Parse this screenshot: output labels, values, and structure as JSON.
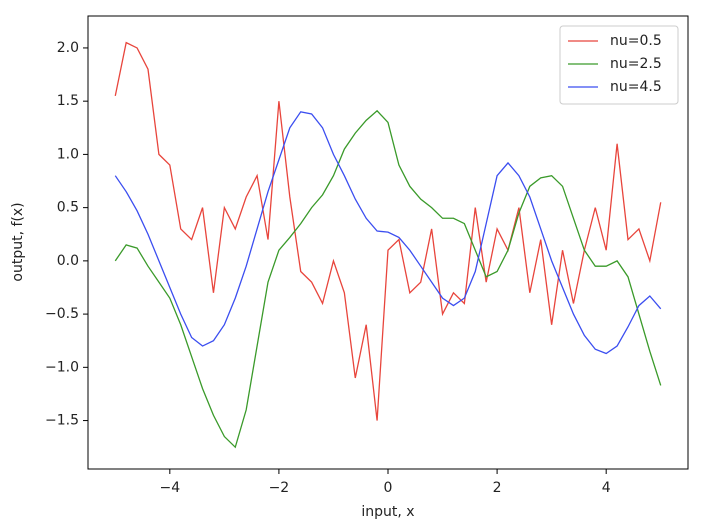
{
  "chart_data": {
    "type": "line",
    "xlabel": "input, x",
    "ylabel": "output, f(x)",
    "x": [
      -5,
      -4.8,
      -4.6,
      -4.4,
      -4.2,
      -4,
      -3.8,
      -3.6,
      -3.4,
      -3.2,
      -3,
      -2.8,
      -2.6,
      -2.4,
      -2.2,
      -2,
      -1.8,
      -1.6,
      -1.4,
      -1.2,
      -1,
      -0.8,
      -0.6,
      -0.4,
      -0.2,
      0,
      0.2,
      0.4,
      0.6,
      0.8,
      1,
      1.2,
      1.4,
      1.6,
      1.8,
      2,
      2.2,
      2.4,
      2.6,
      2.8,
      3,
      3.2,
      3.4,
      3.6,
      3.8,
      4,
      4.2,
      4.4,
      4.6,
      4.8,
      5
    ],
    "series": [
      {
        "name": "nu=0.5",
        "color": "#e8453c",
        "values": [
          1.55,
          2.05,
          2.0,
          1.8,
          1.0,
          0.9,
          0.3,
          0.2,
          0.5,
          -0.3,
          0.5,
          0.3,
          0.6,
          0.8,
          0.2,
          1.5,
          0.6,
          -0.1,
          -0.2,
          -0.4,
          0.0,
          -0.3,
          -1.1,
          -0.6,
          -1.5,
          0.1,
          0.2,
          -0.3,
          -0.2,
          0.3,
          -0.5,
          -0.3,
          -0.4,
          0.5,
          -0.2,
          0.3,
          0.1,
          0.5,
          -0.3,
          0.2,
          -0.6,
          0.1,
          -0.4,
          0.1,
          0.5,
          0.1,
          1.1,
          0.2,
          0.3,
          0.0,
          0.55
        ]
      },
      {
        "name": "nu=2.5",
        "color": "#3a9a2a",
        "values": [
          0,
          0.15,
          0.12,
          -0.05,
          -0.2,
          -0.35,
          -0.6,
          -0.9,
          -1.2,
          -1.45,
          -1.65,
          -1.75,
          -1.4,
          -0.8,
          -0.2,
          0.1,
          0.22,
          0.35,
          0.5,
          0.62,
          0.8,
          1.05,
          1.2,
          1.32,
          1.41,
          1.3,
          0.9,
          0.7,
          0.58,
          0.5,
          0.4,
          0.4,
          0.35,
          0.1,
          -0.15,
          -0.1,
          0.1,
          0.45,
          0.7,
          0.78,
          0.8,
          0.7,
          0.4,
          0.1,
          -0.05,
          -0.05,
          0.0,
          -0.15,
          -0.5,
          -0.85,
          -1.17
        ]
      },
      {
        "name": "nu=4.5",
        "color": "#3b4ef0",
        "values": [
          0.8,
          0.65,
          0.47,
          0.25,
          0.0,
          -0.25,
          -0.5,
          -0.72,
          -0.8,
          -0.75,
          -0.6,
          -0.35,
          -0.05,
          0.3,
          0.65,
          0.95,
          1.25,
          1.4,
          1.38,
          1.25,
          1.0,
          0.8,
          0.58,
          0.4,
          0.28,
          0.27,
          0.22,
          0.1,
          -0.05,
          -0.2,
          -0.35,
          -0.42,
          -0.35,
          -0.1,
          0.35,
          0.8,
          0.92,
          0.8,
          0.6,
          0.3,
          0.0,
          -0.25,
          -0.5,
          -0.7,
          -0.83,
          -0.87,
          -0.8,
          -0.62,
          -0.42,
          -0.33,
          -0.45
        ]
      }
    ],
    "xlim": [
      -5.5,
      5.5
    ],
    "ylim": [
      -1.955,
      2.3
    ],
    "xticks": [
      {
        "value": -4,
        "label": "−4"
      },
      {
        "value": -2,
        "label": "−2"
      },
      0,
      2,
      4
    ],
    "yticks": [
      {
        "value": -1.5,
        "label": "−1.5"
      },
      {
        "value": -1,
        "label": "−1.0"
      },
      {
        "value": -0.5,
        "label": "−0.5"
      },
      {
        "value": 0,
        "label": "0.0"
      },
      {
        "value": 0.5,
        "label": "0.5"
      },
      {
        "value": 1,
        "label": "1.0"
      },
      {
        "value": 1.5,
        "label": "1.5"
      },
      {
        "value": 2,
        "label": "2.0"
      }
    ],
    "legend": "upper right"
  }
}
